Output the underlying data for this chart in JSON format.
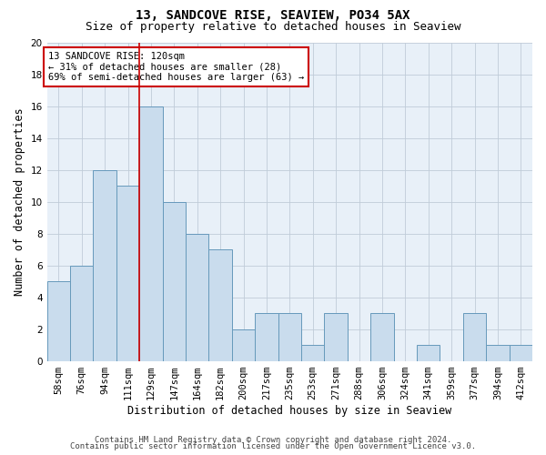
{
  "title1": "13, SANDCOVE RISE, SEAVIEW, PO34 5AX",
  "title2": "Size of property relative to detached houses in Seaview",
  "xlabel": "Distribution of detached houses by size in Seaview",
  "ylabel": "Number of detached properties",
  "categories": [
    "58sqm",
    "76sqm",
    "94sqm",
    "111sqm",
    "129sqm",
    "147sqm",
    "164sqm",
    "182sqm",
    "200sqm",
    "217sqm",
    "235sqm",
    "253sqm",
    "271sqm",
    "288sqm",
    "306sqm",
    "324sqm",
    "341sqm",
    "359sqm",
    "377sqm",
    "394sqm",
    "412sqm"
  ],
  "values": [
    5,
    6,
    12,
    11,
    16,
    10,
    8,
    7,
    2,
    3,
    3,
    1,
    3,
    0,
    3,
    0,
    1,
    0,
    3,
    1,
    1
  ],
  "bar_color": "#c9dced",
  "bar_edge_color": "#6699bb",
  "vline_color": "#cc0000",
  "vline_x": 3.5,
  "ylim": [
    0,
    20
  ],
  "yticks": [
    0,
    2,
    4,
    6,
    8,
    10,
    12,
    14,
    16,
    18,
    20
  ],
  "annotation_text": "13 SANDCOVE RISE: 120sqm\n← 31% of detached houses are smaller (28)\n69% of semi-detached houses are larger (63) →",
  "annotation_box_color": "#cc0000",
  "footer1": "Contains HM Land Registry data © Crown copyright and database right 2024.",
  "footer2": "Contains public sector information licensed under the Open Government Licence v3.0.",
  "bg_color": "#ffffff",
  "plot_bg_color": "#e8f0f8",
  "grid_color": "#c0ccd8",
  "title_fontsize": 10,
  "subtitle_fontsize": 9,
  "label_fontsize": 8.5,
  "tick_fontsize": 7.5,
  "annotation_fontsize": 7.5,
  "footer_fontsize": 6.5
}
